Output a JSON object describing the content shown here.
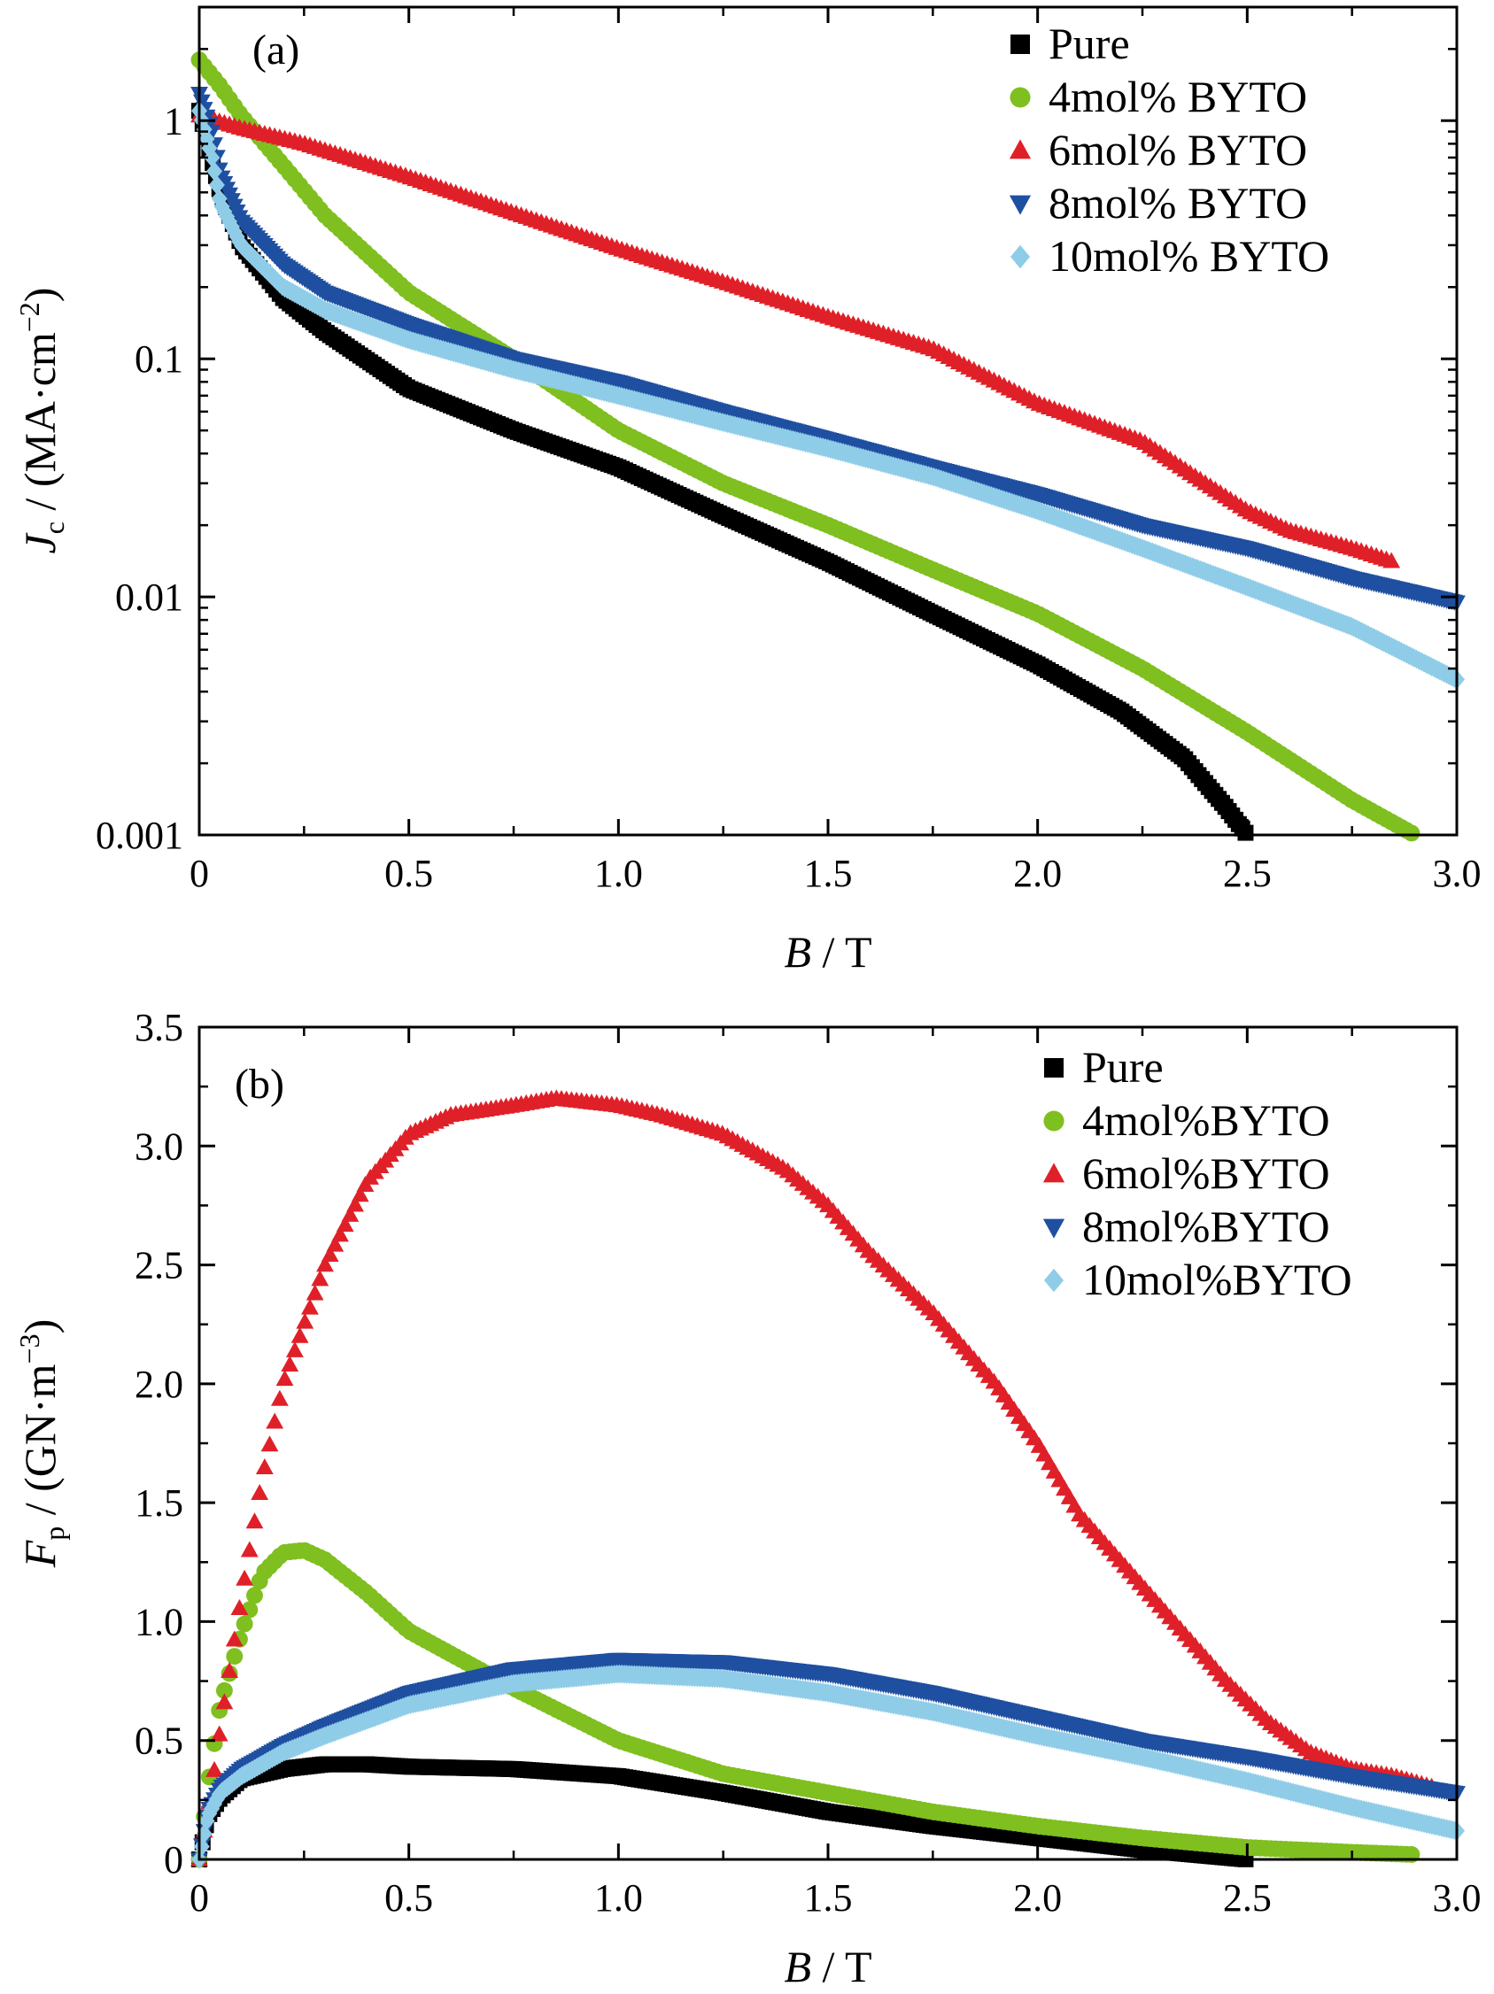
{
  "chart_data": [
    {
      "panel": "(a)",
      "type": "scatter",
      "xlabel": "B / T",
      "ylabel": "Jc / (MA·cm−2)",
      "ylabel_parts": {
        "symbol": "J",
        "sub": "c",
        "unit_pre": " / (MA·cm",
        "sup": "−2",
        "unit_post": ")"
      },
      "xlabel_parts": {
        "symbol": "B",
        "unit": " / T"
      },
      "xlim": [
        0,
        3.0
      ],
      "ylim": [
        0.001,
        3
      ],
      "yscale": "log",
      "xticks": [
        "0",
        "0.5",
        "1.0",
        "1.5",
        "2.0",
        "2.5",
        "3.0"
      ],
      "yticks": [
        "0.001",
        "0.01",
        "0.1",
        "1"
      ],
      "legend_position": "top-right",
      "series": [
        {
          "name": "Pure",
          "marker": "square",
          "color": "#000000",
          "x": [
            0,
            0.05,
            0.1,
            0.2,
            0.3,
            0.5,
            0.75,
            1.0,
            1.25,
            1.5,
            1.75,
            2.0,
            2.2,
            2.35,
            2.45,
            2.5
          ],
          "y": [
            1.1,
            0.5,
            0.3,
            0.18,
            0.13,
            0.075,
            0.05,
            0.035,
            0.022,
            0.014,
            0.0085,
            0.0052,
            0.0033,
            0.0021,
            0.0013,
            0.001
          ]
        },
        {
          "name": "4mol% BYTO",
          "marker": "circle",
          "color": "#7fbf1f",
          "x": [
            0,
            0.05,
            0.1,
            0.2,
            0.3,
            0.5,
            0.75,
            1.0,
            1.25,
            1.5,
            1.75,
            2.0,
            2.25,
            2.5,
            2.75,
            2.9
          ],
          "y": [
            1.8,
            1.4,
            1.05,
            0.65,
            0.4,
            0.19,
            0.1,
            0.05,
            0.03,
            0.02,
            0.013,
            0.0085,
            0.005,
            0.0027,
            0.0014,
            0.001
          ]
        },
        {
          "name": "6mol% BYTO",
          "marker": "triangle-up",
          "color": "#e02028",
          "x": [
            0,
            0.1,
            0.25,
            0.5,
            0.75,
            1.0,
            1.25,
            1.5,
            1.75,
            2.0,
            2.25,
            2.4,
            2.5,
            2.6,
            2.75,
            2.85
          ],
          "y": [
            1.05,
            0.93,
            0.8,
            0.58,
            0.41,
            0.29,
            0.21,
            0.15,
            0.11,
            0.065,
            0.045,
            0.03,
            0.023,
            0.019,
            0.016,
            0.014
          ]
        },
        {
          "name": "8mol% BYTO",
          "marker": "triangle-down",
          "color": "#1f4fa0",
          "x": [
            0,
            0.03,
            0.05,
            0.1,
            0.2,
            0.3,
            0.5,
            0.75,
            1.0,
            1.25,
            1.5,
            1.75,
            2.0,
            2.25,
            2.5,
            2.75,
            3.0
          ],
          "y": [
            1.3,
            0.9,
            0.6,
            0.38,
            0.25,
            0.19,
            0.14,
            0.1,
            0.08,
            0.06,
            0.046,
            0.035,
            0.027,
            0.02,
            0.016,
            0.012,
            0.0095
          ]
        },
        {
          "name": "10mol% BYTO",
          "marker": "diamond",
          "color": "#8fcce8",
          "x": [
            0,
            0.03,
            0.05,
            0.1,
            0.2,
            0.3,
            0.5,
            0.75,
            1.0,
            1.25,
            1.5,
            1.75,
            2.0,
            2.25,
            2.5,
            2.75,
            3.0
          ],
          "y": [
            1.1,
            0.7,
            0.45,
            0.3,
            0.2,
            0.16,
            0.12,
            0.09,
            0.07,
            0.054,
            0.042,
            0.032,
            0.023,
            0.016,
            0.011,
            0.0075,
            0.0045
          ]
        }
      ]
    },
    {
      "panel": "(b)",
      "type": "scatter",
      "xlabel": "B / T",
      "ylabel": "Fp / (GN·m−3)",
      "ylabel_parts": {
        "symbol": "F",
        "sub": "p",
        "unit_pre": " / (GN·m",
        "sup": "−3",
        "unit_post": ")"
      },
      "xlabel_parts": {
        "symbol": "B",
        "unit": " / T"
      },
      "xlim": [
        0,
        3.0
      ],
      "ylim": [
        0,
        3.5
      ],
      "yscale": "linear",
      "xticks": [
        "0",
        "0.5",
        "1.0",
        "1.5",
        "2.0",
        "2.5",
        "3.0"
      ],
      "yticks": [
        "0",
        "0.5",
        "1.0",
        "1.5",
        "2.0",
        "2.5",
        "3.0",
        "3.5"
      ],
      "legend_position": "top-right",
      "series": [
        {
          "name": "Pure",
          "marker": "square",
          "color": "#000000",
          "x": [
            0,
            0.02,
            0.05,
            0.1,
            0.2,
            0.3,
            0.4,
            0.5,
            0.75,
            1.0,
            1.25,
            1.5,
            1.75,
            2.0,
            2.25,
            2.5
          ],
          "y": [
            0,
            0.18,
            0.26,
            0.34,
            0.38,
            0.4,
            0.4,
            0.39,
            0.38,
            0.35,
            0.28,
            0.2,
            0.14,
            0.09,
            0.04,
            0.0
          ]
        },
        {
          "name": "4mol%BYTO",
          "marker": "circle",
          "color": "#7fbf1f",
          "x": [
            0,
            0.02,
            0.05,
            0.1,
            0.15,
            0.2,
            0.25,
            0.3,
            0.4,
            0.5,
            0.75,
            1.0,
            1.25,
            1.5,
            1.75,
            2.0,
            2.25,
            2.5,
            2.75,
            2.9
          ],
          "y": [
            0,
            0.3,
            0.65,
            0.95,
            1.2,
            1.29,
            1.3,
            1.26,
            1.12,
            0.96,
            0.72,
            0.5,
            0.36,
            0.28,
            0.2,
            0.14,
            0.09,
            0.05,
            0.03,
            0.02
          ]
        },
        {
          "name": "6mol%BYTO",
          "marker": "triangle-up",
          "color": "#e02028",
          "x": [
            0,
            0.03,
            0.05,
            0.1,
            0.15,
            0.2,
            0.3,
            0.4,
            0.5,
            0.6,
            0.75,
            0.85,
            1.0,
            1.1,
            1.25,
            1.4,
            1.5,
            1.6,
            1.75,
            1.9,
            2.0,
            2.1,
            2.25,
            2.35,
            2.45,
            2.55,
            2.65,
            2.75,
            2.85,
            2.95
          ],
          "y": [
            0,
            0.3,
            0.55,
            1.1,
            1.6,
            2.0,
            2.5,
            2.85,
            3.05,
            3.13,
            3.17,
            3.2,
            3.17,
            3.13,
            3.05,
            2.9,
            2.75,
            2.55,
            2.3,
            2.0,
            1.75,
            1.45,
            1.15,
            0.95,
            0.75,
            0.58,
            0.45,
            0.38,
            0.35,
            0.3
          ]
        },
        {
          "name": "8mol%BYTO",
          "marker": "triangle-down",
          "color": "#1f4fa0",
          "x": [
            0,
            0.02,
            0.05,
            0.1,
            0.2,
            0.3,
            0.5,
            0.75,
            1.0,
            1.25,
            1.5,
            1.75,
            2.0,
            2.25,
            2.5,
            2.75,
            3.0
          ],
          "y": [
            0,
            0.2,
            0.3,
            0.38,
            0.48,
            0.56,
            0.7,
            0.8,
            0.84,
            0.83,
            0.78,
            0.7,
            0.6,
            0.5,
            0.43,
            0.35,
            0.28
          ]
        },
        {
          "name": "10mol%BYTO",
          "marker": "diamond",
          "color": "#8fcce8",
          "x": [
            0,
            0.02,
            0.05,
            0.1,
            0.2,
            0.3,
            0.5,
            0.75,
            1.0,
            1.25,
            1.5,
            1.75,
            2.0,
            2.25,
            2.5,
            2.75,
            3.0
          ],
          "y": [
            0,
            0.18,
            0.28,
            0.35,
            0.45,
            0.52,
            0.65,
            0.74,
            0.78,
            0.76,
            0.7,
            0.62,
            0.52,
            0.43,
            0.33,
            0.22,
            0.12
          ]
        }
      ]
    }
  ]
}
